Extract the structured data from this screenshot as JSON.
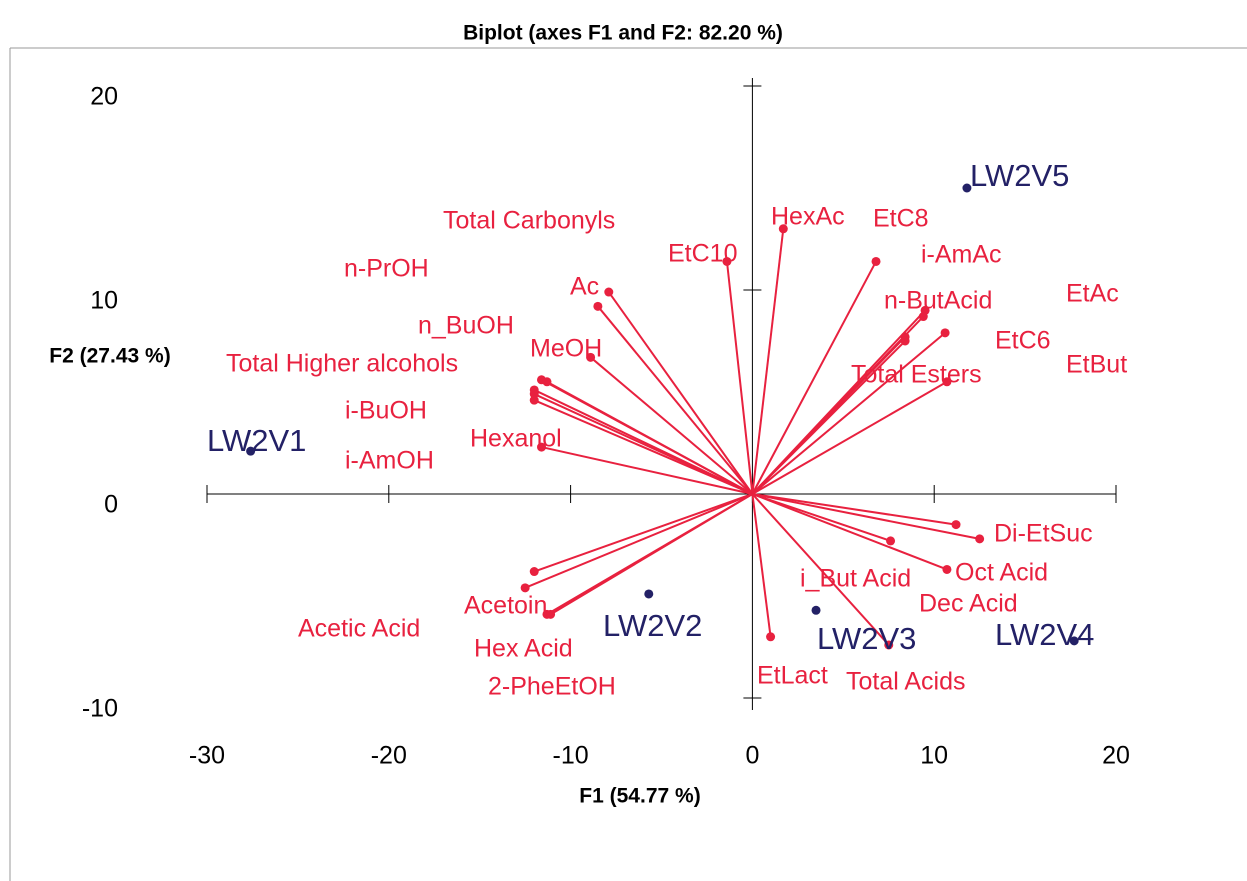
{
  "chart_data": {
    "type": "biplot",
    "title": "Biplot (axes F1 and F2: 82.20 %)",
    "x_label": "F1 (54.77 %)",
    "y_label": "F2 (27.43 %)",
    "xlim": [
      -30,
      20
    ],
    "xticks": [
      -30,
      -20,
      -10,
      0,
      10,
      20
    ],
    "ylim": [
      -10,
      20
    ],
    "yticks": [
      -10,
      0,
      10,
      20
    ],
    "variables": {
      "color": "#e8213f",
      "labels": [
        "Total Carbonyls",
        "n-PrOH",
        "Ac",
        "n_BuOH",
        "MeOH",
        "Total Higher alcohols",
        "i-BuOH",
        "i-AmOH",
        "Hexanol",
        "EtC10",
        "HexAc",
        "EtC8",
        "i-AmAc",
        "n-ButAcid",
        "EtAc",
        "EtC6",
        "EtBut",
        "Total Esters",
        "Di-EtSuc",
        "Oct Acid",
        "Dec Acid",
        "i_But Acid",
        "Total Acids",
        "EtLact",
        "Acetic Acid",
        "Acetoin",
        "Hex Acid",
        "2-PheEtOH"
      ],
      "x": [
        -8.5,
        -11.6,
        -7.9,
        -11.3,
        -8.9,
        -12.0,
        -12.0,
        -12.0,
        -11.6,
        -1.4,
        1.7,
        6.8,
        9.5,
        9.4,
        10.6,
        8.4,
        8.4,
        10.7,
        12.5,
        10.7,
        11.2,
        7.6,
        7.5,
        1.0,
        -12.5,
        -12.0,
        -11.3,
        -11.1
      ],
      "y": [
        9.2,
        5.6,
        9.9,
        5.5,
        6.7,
        5.1,
        4.9,
        4.6,
        2.3,
        11.4,
        13.0,
        11.4,
        9.0,
        8.7,
        7.9,
        7.7,
        7.5,
        5.5,
        -2.2,
        -3.7,
        -1.5,
        -2.3,
        -7.4,
        -7.0,
        -4.6,
        -3.8,
        -5.9,
        -5.9
      ]
    },
    "observations": {
      "color": "#232166",
      "labels": [
        "LW2V1",
        "LW2V2",
        "LW2V3",
        "LW2V4",
        "LW2V5"
      ],
      "x": [
        -27.6,
        -5.7,
        3.5,
        17.7,
        11.8
      ],
      "y": [
        2.1,
        -4.9,
        -5.7,
        -7.2,
        15.0
      ]
    }
  }
}
